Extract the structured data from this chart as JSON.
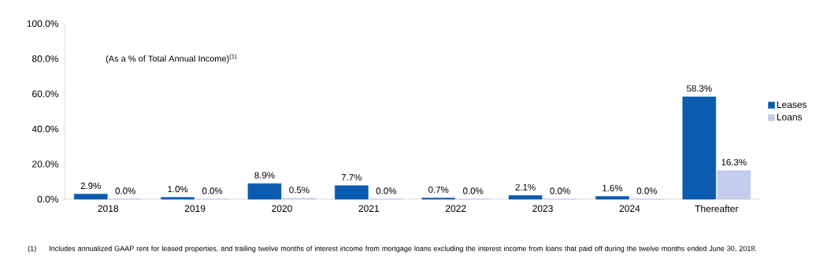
{
  "chart_data": {
    "type": "bar",
    "categories": [
      "2018",
      "2019",
      "2020",
      "2021",
      "2022",
      "2023",
      "2024",
      "Thereafter"
    ],
    "series": [
      {
        "name": "Leases",
        "color": "#0b5cb0",
        "values": [
          2.9,
          1.0,
          8.9,
          7.7,
          0.7,
          2.1,
          1.6,
          58.3
        ],
        "value_labels": [
          "2.9%",
          "1.0%",
          "8.9%",
          "7.7%",
          "0.7%",
          "2.1%",
          "1.6%",
          "58.3%"
        ]
      },
      {
        "name": "Loans",
        "color": "#c5cdef",
        "values": [
          0.0,
          0.0,
          0.5,
          0.0,
          0.0,
          0.0,
          0.0,
          16.3
        ],
        "value_labels": [
          "0.0%",
          "0.0%",
          "0.5%",
          "0.0%",
          "0.0%",
          "0.0%",
          "0.0%",
          "16.3%"
        ]
      }
    ],
    "ylim": [
      0,
      100
    ],
    "yticks": [
      {
        "value": 0,
        "label": "0.0%"
      },
      {
        "value": 20,
        "label": "20.0%"
      },
      {
        "value": 40,
        "label": "40.0%"
      },
      {
        "value": 60,
        "label": "60.0%"
      },
      {
        "value": 80,
        "label": "80.0%"
      },
      {
        "value": 100,
        "label": "100.0%"
      }
    ],
    "legend": "right",
    "annotations": [
      "(As a % of Total Annual Income)$^{(1)}$",
      "(1)",
      "Includes annualized GAAP rent for leased properties, and trailing twelve months of interest income from mortgage loans excluding the interest income from loans that paid off during the twelve months ended June 30, 2018."
    ]
  }
}
